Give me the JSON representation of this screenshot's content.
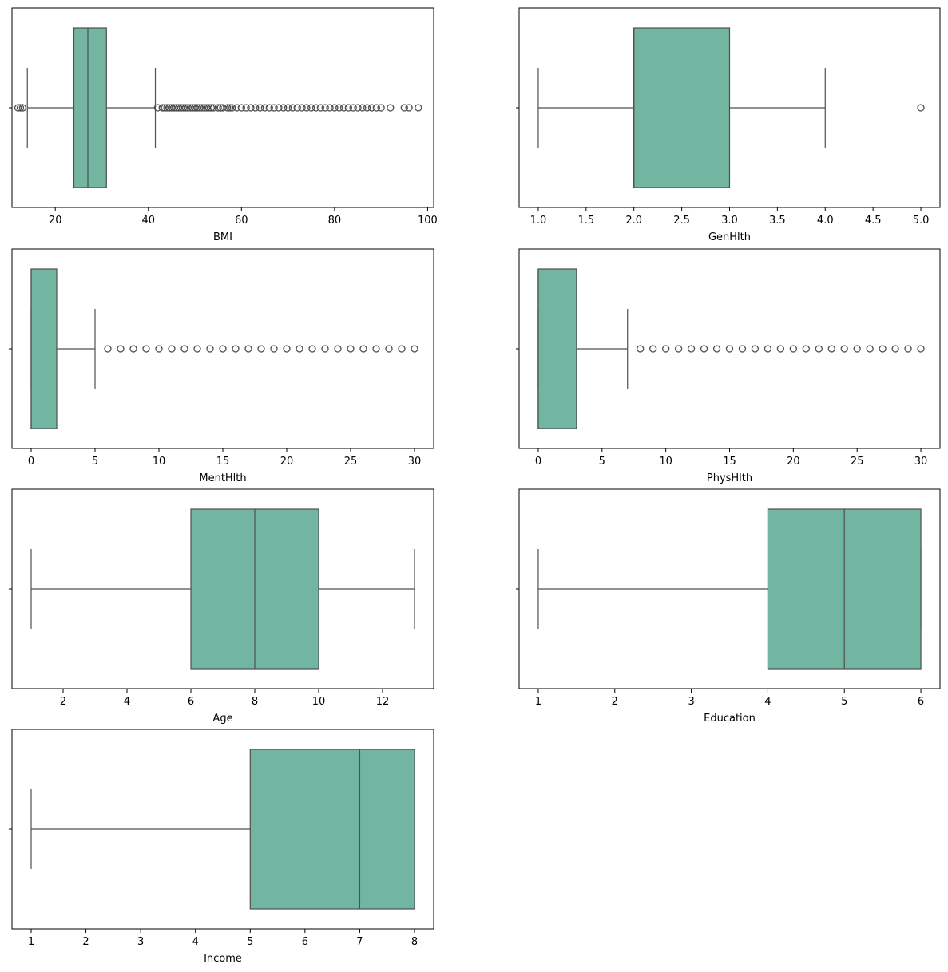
{
  "figure": {
    "colors": {
      "box_fill": "#72b5a1",
      "line": "#4f4f4f",
      "flier_edge": "#4f4f4f",
      "axes": "#000000"
    }
  },
  "chart_data": [
    {
      "type": "box",
      "xlabel": "BMI",
      "xlim": [
        10.7,
        101.3
      ],
      "xticks": [
        20,
        40,
        60,
        80,
        100
      ],
      "xtick_labels": [
        "20",
        "40",
        "60",
        "80",
        "100"
      ],
      "box": {
        "whislo": 14,
        "q1": 24,
        "med": 27,
        "q3": 31,
        "whishi": 41.5
      },
      "fliers": [
        12,
        12.5,
        13,
        42,
        43,
        43.5,
        44,
        44.5,
        45,
        45.5,
        46,
        46.5,
        47,
        47.5,
        48,
        48.5,
        49,
        49.5,
        50,
        50.5,
        51,
        51.5,
        52,
        52.5,
        53,
        53.5,
        54,
        55,
        55.5,
        56,
        57,
        57.5,
        58,
        59,
        60,
        61,
        62,
        63,
        64,
        65,
        66,
        67,
        68,
        69,
        70,
        71,
        72,
        73,
        74,
        75,
        76,
        77,
        78,
        79,
        80,
        81,
        82,
        83,
        84,
        85,
        86,
        87,
        88,
        89,
        90,
        92,
        95,
        96,
        98
      ]
    },
    {
      "type": "box",
      "xlabel": "GenHlth",
      "xlim": [
        0.8,
        5.2
      ],
      "xticks": [
        1.0,
        1.5,
        2.0,
        2.5,
        3.0,
        3.5,
        4.0,
        4.5,
        5.0
      ],
      "xtick_labels": [
        "1.0",
        "1.5",
        "2.0",
        "2.5",
        "3.0",
        "3.5",
        "4.0",
        "4.5",
        "5.0"
      ],
      "box": {
        "whislo": 1,
        "q1": 2,
        "med": 2,
        "q3": 3,
        "whishi": 4
      },
      "fliers": [
        5
      ]
    },
    {
      "type": "box",
      "xlabel": "MentHlth",
      "xlim": [
        -1.5,
        31.5
      ],
      "xticks": [
        0,
        5,
        10,
        15,
        20,
        25,
        30
      ],
      "xtick_labels": [
        "0",
        "5",
        "10",
        "15",
        "20",
        "25",
        "30"
      ],
      "box": {
        "whislo": 0,
        "q1": 0,
        "med": 0,
        "q3": 2,
        "whishi": 5
      },
      "fliers": [
        6,
        7,
        8,
        9,
        10,
        11,
        12,
        13,
        14,
        15,
        16,
        17,
        18,
        19,
        20,
        21,
        22,
        23,
        24,
        25,
        26,
        27,
        28,
        29,
        30
      ]
    },
    {
      "type": "box",
      "xlabel": "PhysHlth",
      "xlim": [
        -1.5,
        31.5
      ],
      "xticks": [
        0,
        5,
        10,
        15,
        20,
        25,
        30
      ],
      "xtick_labels": [
        "0",
        "5",
        "10",
        "15",
        "20",
        "25",
        "30"
      ],
      "box": {
        "whislo": 0,
        "q1": 0,
        "med": 0,
        "q3": 3,
        "whishi": 7
      },
      "fliers": [
        8,
        9,
        10,
        11,
        12,
        13,
        14,
        15,
        16,
        17,
        18,
        19,
        20,
        21,
        22,
        23,
        24,
        25,
        26,
        27,
        28,
        29,
        30
      ]
    },
    {
      "type": "box",
      "xlabel": "Age",
      "xlim": [
        0.4,
        13.6
      ],
      "xticks": [
        2,
        4,
        6,
        8,
        10,
        12
      ],
      "xtick_labels": [
        "2",
        "4",
        "6",
        "8",
        "10",
        "12"
      ],
      "box": {
        "whislo": 1,
        "q1": 6,
        "med": 8,
        "q3": 10,
        "whishi": 13
      },
      "fliers": []
    },
    {
      "type": "box",
      "xlabel": "Education",
      "xlim": [
        0.75,
        6.25
      ],
      "xticks": [
        1,
        2,
        3,
        4,
        5,
        6
      ],
      "xtick_labels": [
        "1",
        "2",
        "3",
        "4",
        "5",
        "6"
      ],
      "box": {
        "whislo": 1,
        "q1": 4,
        "med": 5,
        "q3": 6,
        "whishi": 6
      },
      "fliers": []
    },
    {
      "type": "box",
      "xlabel": "Income",
      "xlim": [
        0.65,
        8.35
      ],
      "xticks": [
        1,
        2,
        3,
        4,
        5,
        6,
        7,
        8
      ],
      "xtick_labels": [
        "1",
        "2",
        "3",
        "4",
        "5",
        "6",
        "7",
        "8"
      ],
      "box": {
        "whislo": 1,
        "q1": 5,
        "med": 7,
        "q3": 8,
        "whishi": 8
      },
      "fliers": []
    }
  ]
}
